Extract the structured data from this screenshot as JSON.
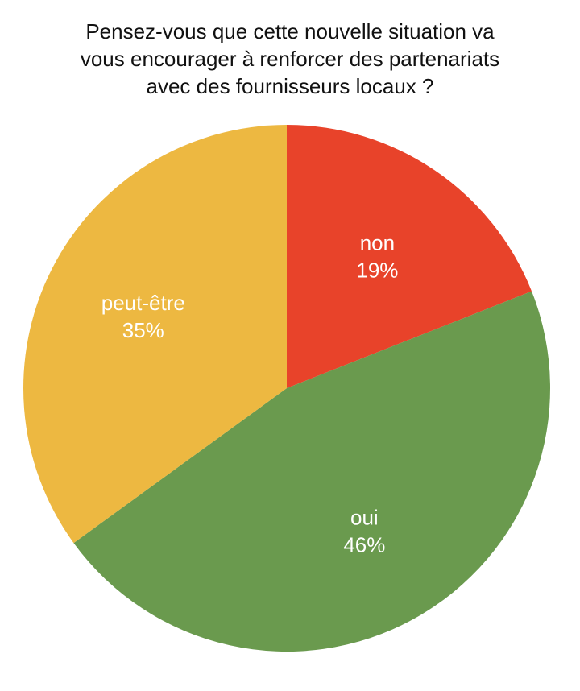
{
  "chart_data": {
    "type": "pie",
    "title_lines": [
      "Pensez-vous que cette nouvelle situation va",
      "vous encourager à renforcer des partenariats",
      "avec des fournisseurs locaux ?"
    ],
    "slices": [
      {
        "label": "non",
        "value": 19,
        "value_label": "19%",
        "color": "#E8432A"
      },
      {
        "label": "oui",
        "value": 46,
        "value_label": "46%",
        "color": "#6A9A4E"
      },
      {
        "label": "peut-être",
        "value": 35,
        "value_label": "35%",
        "color": "#EDB841"
      }
    ],
    "start_angle_deg": 0,
    "direction": "clockwise",
    "legend": "none"
  }
}
